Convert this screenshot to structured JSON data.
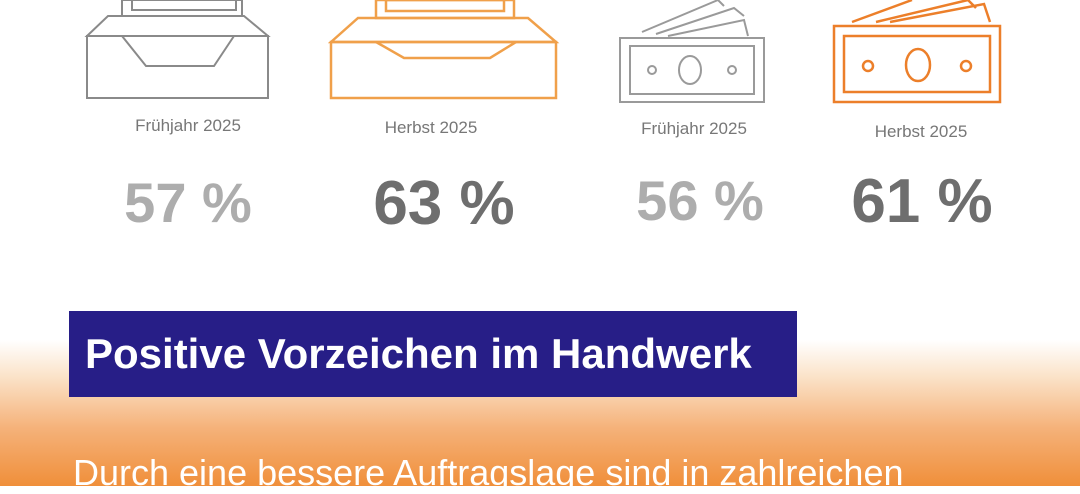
{
  "stats": [
    {
      "label": "Frühjahr 2025",
      "value": "57 %",
      "icon": "inbox-tray-icon",
      "color": "#8a8a8a"
    },
    {
      "label": "Herbst 2025",
      "value": "63 %",
      "icon": "inbox-tray-icon",
      "color": "#f0a04a"
    },
    {
      "label": "Frühjahr 2025",
      "value": "56 %",
      "icon": "banknote-icon",
      "color": "#9a9a9a"
    },
    {
      "label": "Herbst 2025",
      "value": "61 %",
      "icon": "banknote-icon",
      "color": "#ec7f2a"
    }
  ],
  "headline": "Positive Vorzeichen im Handwerk",
  "body": "Durch eine bessere Auftragslage sind in zahlreichen",
  "colors": {
    "headline_bg": "#271e87",
    "accent": "#f08f3a"
  }
}
